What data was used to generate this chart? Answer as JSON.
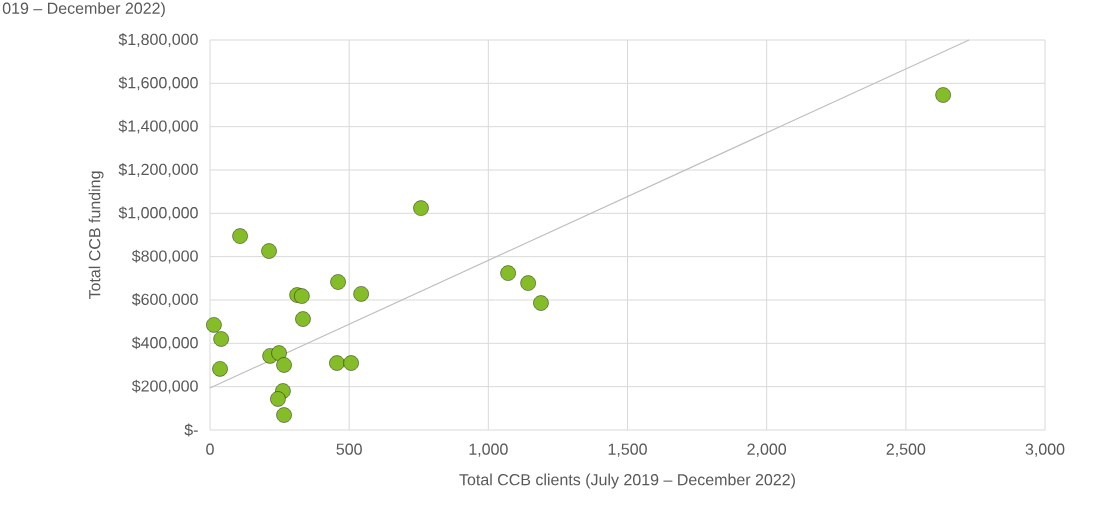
{
  "chart_data": {
    "type": "scatter",
    "xlabel": "Total CCB clients (July 2019 – December 2022)",
    "ylabel": "Total CCB funding",
    "annotations": [
      "019 – December 2022)"
    ],
    "series": [
      {
        "color": "#84bd27",
        "marker": "circle",
        "x": [
          14,
          40,
          36,
          108,
          212,
          216,
          248,
          266,
          262,
          244,
          266,
          313,
          330,
          334,
          460,
          456,
          507,
          543,
          758,
          1071,
          1143,
          1189,
          2634
        ],
        "values": [
          485000,
          420000,
          282000,
          895000,
          826000,
          342000,
          355000,
          300000,
          180000,
          143000,
          69000,
          623000,
          618000,
          512000,
          683000,
          309000,
          309000,
          628000,
          1024000,
          724000,
          678000,
          586000,
          1546000
        ]
      },
      {
        "type": "line",
        "marker": "none",
        "color": "#bfbfbf",
        "x": [
          0,
          2727
        ],
        "values": [
          194000,
          1800000
        ]
      }
    ],
    "grid": true,
    "xlim": [
      0,
      3000
    ],
    "ylim": [
      0,
      1800000
    ],
    "xticks": [
      0,
      500,
      {
        "value": 1000,
        "label": "1,000"
      },
      {
        "value": 1500,
        "label": "1,500"
      },
      {
        "value": 2000,
        "label": "2,000"
      },
      {
        "value": 2500,
        "label": "2,500"
      },
      {
        "value": 3000,
        "label": "3,000"
      }
    ],
    "yticks": [
      {
        "value": 0,
        "label": "$-"
      },
      {
        "value": 200000,
        "label": "$200,000"
      },
      {
        "value": 400000,
        "label": "$400,000"
      },
      {
        "value": 600000,
        "label": "$600,000"
      },
      {
        "value": 800000,
        "label": "$800,000"
      },
      {
        "value": 1000000,
        "label": "$1,000,000"
      },
      {
        "value": 1200000,
        "label": "$1,200,000"
      },
      {
        "value": 1400000,
        "label": "$1,400,000"
      },
      {
        "value": 1600000,
        "label": "$1,600,000"
      },
      {
        "value": 1800000,
        "label": "$1,800,000"
      }
    ]
  }
}
